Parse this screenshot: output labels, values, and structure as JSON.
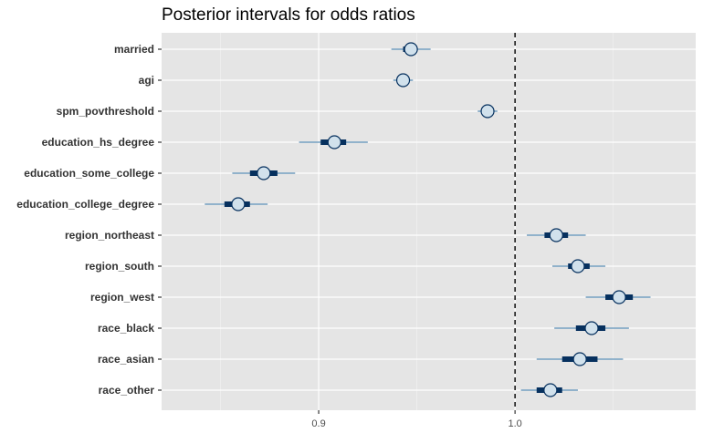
{
  "chart_data": {
    "type": "interval",
    "title": "Posterior intervals for odds ratios",
    "xlabel": "",
    "ylabel": "",
    "xlim": [
      0.82,
      1.092
    ],
    "xticks": [
      0.9,
      1.0
    ],
    "xtick_labels": [
      "0.9",
      "1.0"
    ],
    "reference_line": 1.0,
    "parameters": [
      {
        "name": "married",
        "median": 0.947,
        "inner": [
          0.943,
          0.95
        ],
        "outer": [
          0.937,
          0.957
        ]
      },
      {
        "name": "agi",
        "median": 0.943,
        "inner": [
          0.941,
          0.945
        ],
        "outer": [
          0.938,
          0.948
        ]
      },
      {
        "name": "spm_povthreshold",
        "median": 0.986,
        "inner": [
          0.984,
          0.988
        ],
        "outer": [
          0.981,
          0.991
        ]
      },
      {
        "name": "education_hs_degree",
        "median": 0.908,
        "inner": [
          0.901,
          0.914
        ],
        "outer": [
          0.89,
          0.925
        ]
      },
      {
        "name": "education_some_college",
        "median": 0.872,
        "inner": [
          0.865,
          0.879
        ],
        "outer": [
          0.856,
          0.888
        ]
      },
      {
        "name": "education_college_degree",
        "median": 0.859,
        "inner": [
          0.852,
          0.865
        ],
        "outer": [
          0.842,
          0.874
        ]
      },
      {
        "name": "region_northeast",
        "median": 1.021,
        "inner": [
          1.015,
          1.027
        ],
        "outer": [
          1.006,
          1.036
        ]
      },
      {
        "name": "region_south",
        "median": 1.032,
        "inner": [
          1.027,
          1.038
        ],
        "outer": [
          1.019,
          1.046
        ]
      },
      {
        "name": "region_west",
        "median": 1.053,
        "inner": [
          1.046,
          1.06
        ],
        "outer": [
          1.036,
          1.069
        ]
      },
      {
        "name": "race_black",
        "median": 1.039,
        "inner": [
          1.031,
          1.046
        ],
        "outer": [
          1.02,
          1.058
        ]
      },
      {
        "name": "race_asian",
        "median": 1.033,
        "inner": [
          1.024,
          1.042
        ],
        "outer": [
          1.011,
          1.055
        ]
      },
      {
        "name": "race_other",
        "median": 1.018,
        "inner": [
          1.011,
          1.024
        ],
        "outer": [
          1.003,
          1.032
        ]
      }
    ]
  },
  "colors": {
    "panel_background": "#e5e5e5",
    "grid_major": "#ffffff",
    "grid_minor": "#f2f2f2",
    "outer_interval": "#5b8fb8",
    "inner_interval": "#06305e",
    "point_fill": "#d1e1ec",
    "point_stroke": "#06305e",
    "reference_line": "#000000"
  }
}
